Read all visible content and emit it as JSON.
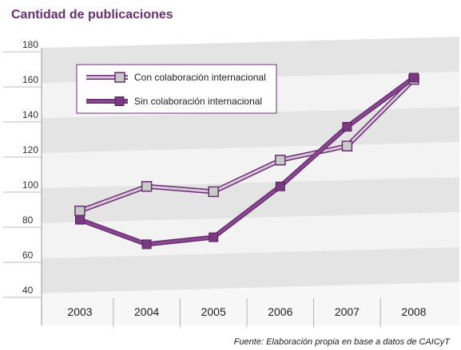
{
  "title": "Cantidad de publicaciones",
  "source": "Fuente: Elaboración propia en base a datos de CAICyT",
  "colors": {
    "title": "#6b2f73",
    "series_con": "#a98dad",
    "series_sin": "#6b2f73",
    "marker_con": "#b3b3b3",
    "marker_sin": "#7a3a80",
    "band_dark": "#e4e4e4",
    "band_light": "#f3f3f3"
  },
  "chart_data": {
    "type": "line",
    "title": "Cantidad de publicaciones",
    "categories": [
      "2003",
      "2004",
      "2005",
      "2006",
      "2007",
      "2008"
    ],
    "ylim": [
      40,
      180
    ],
    "yticks": [
      40,
      60,
      80,
      100,
      120,
      140,
      160,
      180
    ],
    "grid": "horizontal bands",
    "legend_position": "top-left",
    "series": [
      {
        "name": "Con colaboración internacional",
        "marker": "hollow-square",
        "values": [
          87,
          101,
          98,
          116,
          124,
          162
        ]
      },
      {
        "name": "Sin colaboración internacional",
        "marker": "filled-square",
        "values": [
          82,
          68,
          72,
          101,
          135,
          163
        ]
      }
    ]
  }
}
